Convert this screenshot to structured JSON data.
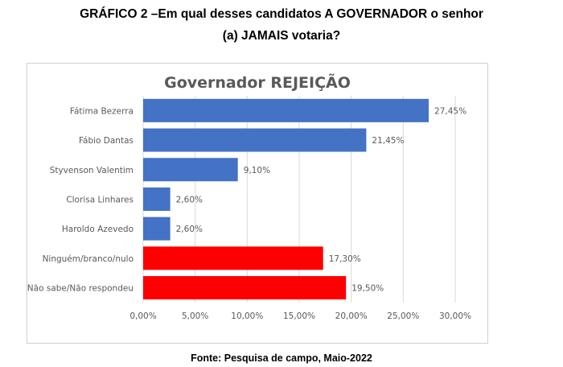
{
  "heading": {
    "line1": "GRÁFICO 2 –Em qual desses candidatos A GOVERNADOR o senhor",
    "line2": "(a) JAMAIS votaria?"
  },
  "source": "Fonte: Pesquisa de campo, Maio-2022",
  "colors": {
    "candidate_bar": "#4472C4",
    "other_bar": "#FF0000",
    "gridline": "#d9d9d9",
    "title": "#595959",
    "label": "#595959"
  },
  "chart_data": {
    "type": "bar",
    "orientation": "horizontal",
    "title": "Governador REJEIÇÃO",
    "categories": [
      "Fátima Bezerra",
      "Fábio Dantas",
      "Styvenson Valentim",
      "Clorisa Linhares",
      "Haroldo Azevedo",
      "Ninguém/branco/nulo",
      "Não sabe/Não respondeu"
    ],
    "values": [
      27.45,
      21.45,
      9.1,
      2.6,
      2.6,
      17.3,
      19.5
    ],
    "value_labels": [
      "27,45%",
      "21,45%",
      "9,10%",
      "2,60%",
      "2,60%",
      "17,30%",
      "19,50%"
    ],
    "bar_colors": [
      "#4472C4",
      "#4472C4",
      "#4472C4",
      "#4472C4",
      "#4472C4",
      "#FF0000",
      "#FF0000"
    ],
    "x_ticks": [
      0,
      5,
      10,
      15,
      20,
      25,
      30
    ],
    "x_tick_labels": [
      "0,00%",
      "5,00%",
      "10,00%",
      "15,00%",
      "20,00%",
      "25,00%",
      "30,00%"
    ],
    "xlim": [
      0,
      30
    ],
    "grid": "vertical",
    "legend": "none",
    "xlabel": "",
    "ylabel": ""
  }
}
